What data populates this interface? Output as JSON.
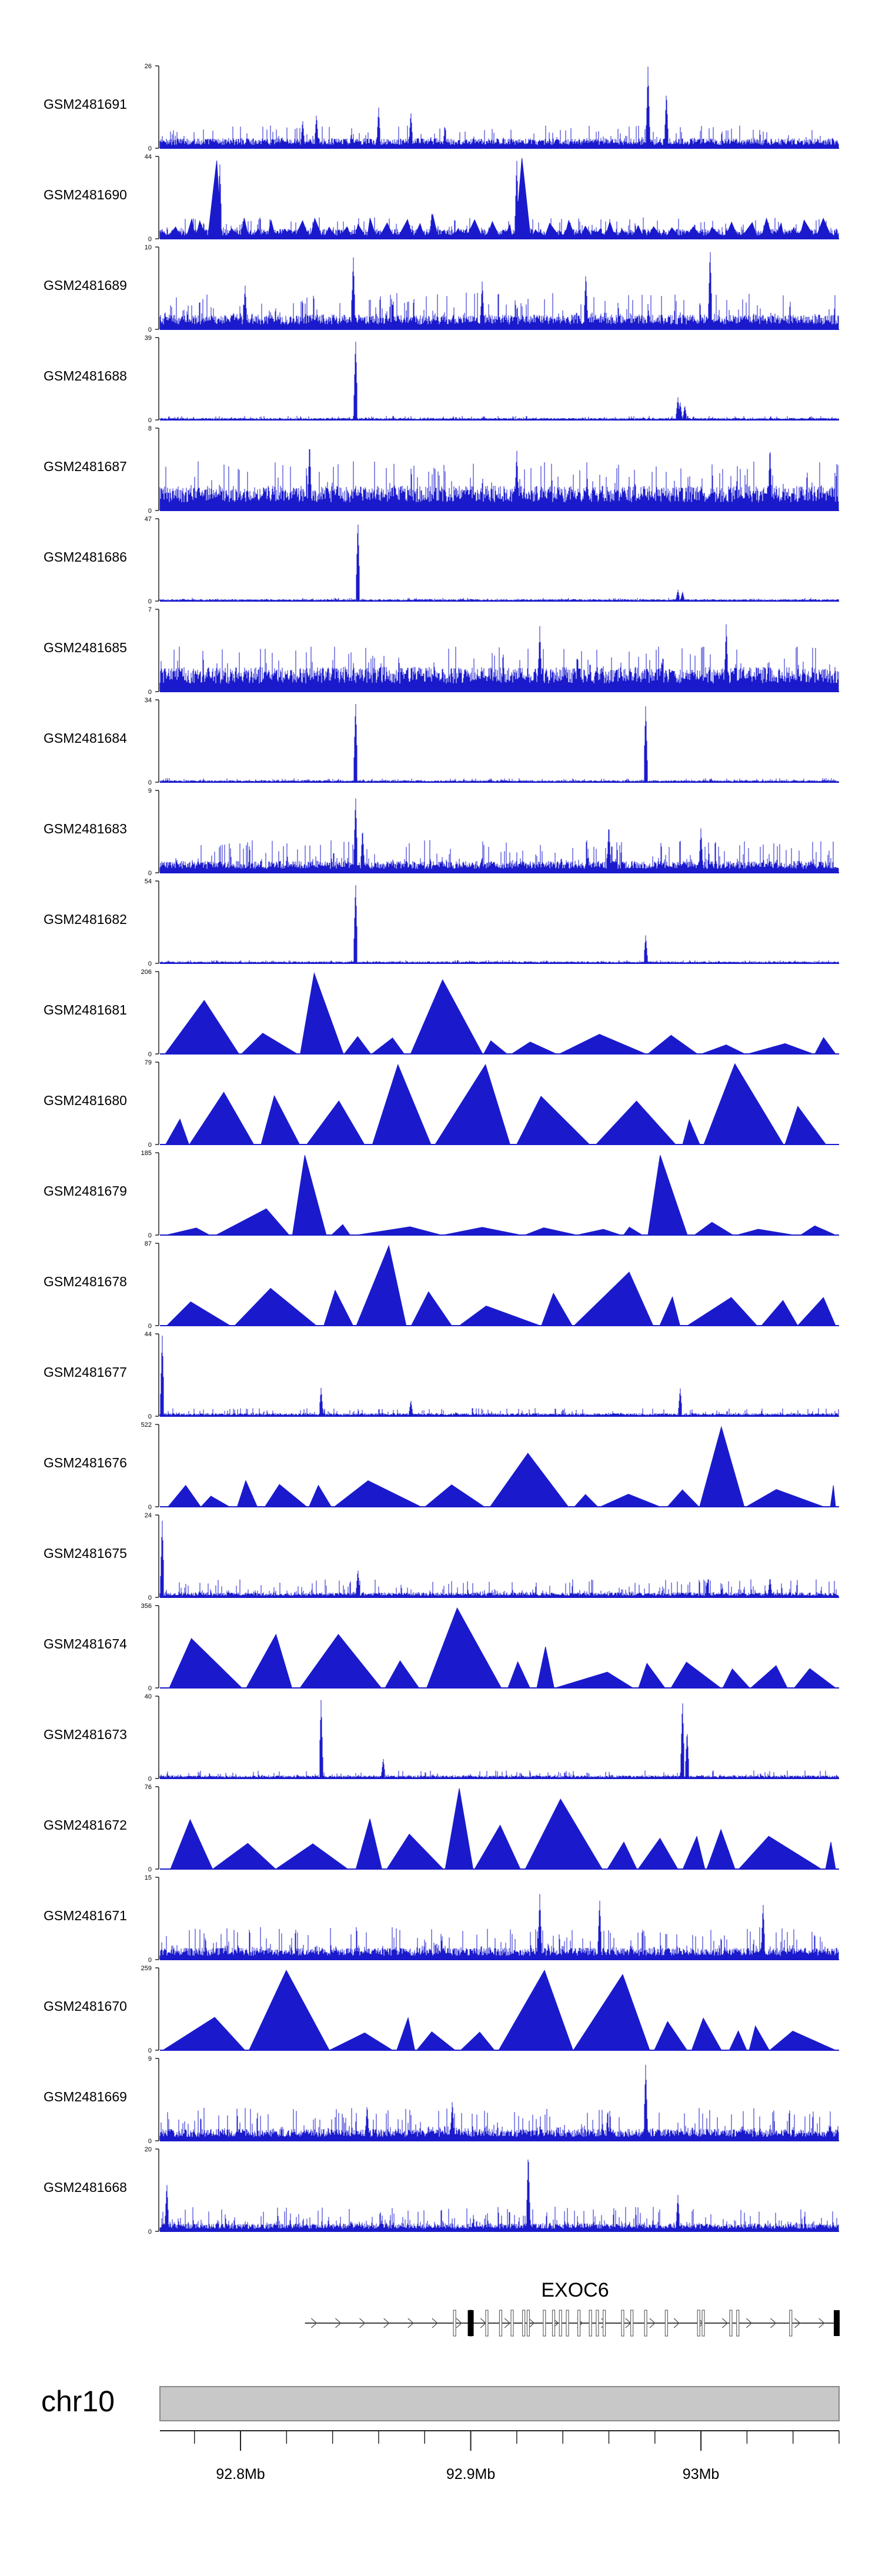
{
  "chart_data": {
    "type": "area",
    "colors": {
      "signal": "#1a1acc",
      "axis": "#222222",
      "ideogram": "#c8c8c8",
      "ideogram_border": "#888888",
      "gene": "#000000"
    },
    "region": {
      "chrom": "chr10",
      "start": 92765000,
      "end": 93060000
    },
    "tracks": [
      {
        "name": "GSM2481691",
        "ymax": 26,
        "ymin": 0,
        "style": "dense",
        "base": 0.1,
        "noise": 0.28,
        "peaks": [
          [
            92.827,
            0.35
          ],
          [
            92.833,
            0.42
          ],
          [
            92.86,
            0.5
          ],
          [
            92.874,
            0.45
          ],
          [
            92.977,
            1.0
          ],
          [
            92.985,
            0.7
          ]
        ]
      },
      {
        "name": "GSM2481690",
        "ymax": 44,
        "ymin": 0,
        "style": "hybrid",
        "base": 0.1,
        "noise": 0.26,
        "peaks": [
          [
            92.791,
            0.95
          ],
          [
            92.92,
            0.98
          ],
          [
            92.883,
            0.3
          ]
        ]
      },
      {
        "name": "GSM2481689",
        "ymax": 10,
        "ymin": 0,
        "style": "dense",
        "base": 0.15,
        "noise": 0.45,
        "peaks": [
          [
            92.802,
            0.55
          ],
          [
            92.849,
            0.9
          ],
          [
            93.004,
            1.0
          ],
          [
            92.905,
            0.6
          ],
          [
            92.95,
            0.7
          ]
        ]
      },
      {
        "name": "GSM2481688",
        "ymax": 39,
        "ymin": 0,
        "style": "dense",
        "base": 0.02,
        "noise": 0.05,
        "peaks": [
          [
            92.85,
            1.0
          ],
          [
            92.99,
            0.28
          ],
          [
            92.991,
            0.22
          ],
          [
            92.993,
            0.18
          ]
        ]
      },
      {
        "name": "GSM2481687",
        "ymax": 8,
        "ymin": 0,
        "style": "dense",
        "base": 0.25,
        "noise": 0.6,
        "peaks": [
          [
            92.83,
            0.85
          ],
          [
            92.92,
            0.75
          ],
          [
            93.03,
            0.8
          ]
        ]
      },
      {
        "name": "GSM2481686",
        "ymax": 47,
        "ymin": 0,
        "style": "dense",
        "base": 0.02,
        "noise": 0.04,
        "peaks": [
          [
            92.851,
            1.0
          ],
          [
            92.99,
            0.14
          ],
          [
            92.992,
            0.12
          ]
        ]
      },
      {
        "name": "GSM2481685",
        "ymax": 7,
        "ymin": 0,
        "style": "dense",
        "base": 0.25,
        "noise": 0.55,
        "peaks": [
          [
            92.93,
            0.8
          ],
          [
            93.011,
            0.85
          ]
        ]
      },
      {
        "name": "GSM2481684",
        "ymax": 34,
        "ymin": 0,
        "style": "dense",
        "base": 0.02,
        "noise": 0.05,
        "peaks": [
          [
            92.85,
            1.0
          ],
          [
            92.976,
            0.95
          ]
        ]
      },
      {
        "name": "GSM2481683",
        "ymax": 9,
        "ymin": 0,
        "style": "dense",
        "base": 0.12,
        "noise": 0.4,
        "peaks": [
          [
            92.85,
            0.95
          ],
          [
            92.853,
            0.55
          ],
          [
            92.96,
            0.6
          ],
          [
            93.0,
            0.55
          ]
        ]
      },
      {
        "name": "GSM2481682",
        "ymax": 54,
        "ymin": 0,
        "style": "dense",
        "base": 0.02,
        "noise": 0.04,
        "peaks": [
          [
            92.85,
            1.0
          ],
          [
            92.976,
            0.35
          ]
        ]
      },
      {
        "name": "GSM2481681",
        "ymax": 206,
        "ymin": 0,
        "style": "triangles",
        "base": 0,
        "noise": 0.2,
        "peaks": [
          [
            92.773,
            0.65
          ],
          [
            92.835,
            0.98
          ],
          [
            92.891,
            0.9
          ],
          [
            92.8825,
            0.45
          ],
          [
            92.766,
            0.28
          ]
        ]
      },
      {
        "name": "GSM2481680",
        "ymax": 79,
        "ymin": 0,
        "style": "triangles",
        "base": 0,
        "noise": 0.5,
        "peaks": [
          [
            92.868,
            0.97
          ],
          [
            92.908,
            0.97
          ],
          [
            93.004,
            0.98
          ],
          [
            92.886,
            0.8
          ]
        ]
      },
      {
        "name": "GSM2481679",
        "ymax": 185,
        "ymin": 0,
        "style": "triangles",
        "base": 0,
        "noise": 0.12,
        "peaks": [
          [
            92.835,
            0.97
          ],
          [
            92.977,
            0.97
          ],
          [
            92.789,
            0.32
          ]
        ]
      },
      {
        "name": "GSM2481678",
        "ymax": 87,
        "ymin": 0,
        "style": "triangles",
        "base": 0,
        "noise": 0.35,
        "peaks": [
          [
            92.869,
            0.97
          ],
          [
            92.963,
            0.65
          ],
          [
            92.803,
            0.4
          ]
        ]
      },
      {
        "name": "GSM2481677",
        "ymax": 44,
        "ymin": 0,
        "style": "dense",
        "base": 0.03,
        "noise": 0.1,
        "peaks": [
          [
            92.766,
            1.0
          ],
          [
            92.835,
            0.35
          ],
          [
            92.991,
            0.35
          ],
          [
            92.874,
            0.2
          ]
        ]
      },
      {
        "name": "GSM2481676",
        "ymax": 522,
        "ymin": 0,
        "style": "triangles",
        "base": 0,
        "noise": 0.25,
        "peaks": [
          [
            92.84,
            0.65
          ],
          [
            92.937,
            0.65
          ],
          [
            93.009,
            0.97
          ],
          [
            93.0065,
            0.25
          ]
        ]
      },
      {
        "name": "GSM2481675",
        "ymax": 24,
        "ymin": 0,
        "style": "dense",
        "base": 0.05,
        "noise": 0.22,
        "peaks": [
          [
            92.766,
            0.95
          ],
          [
            92.851,
            0.35
          ],
          [
            93.03,
            0.25
          ]
        ]
      },
      {
        "name": "GSM2481674",
        "ymax": 356,
        "ymin": 0,
        "style": "triangles",
        "base": 0,
        "noise": 0.3,
        "peaks": [
          [
            92.905,
            0.97
          ],
          [
            92.849,
            0.65
          ],
          [
            92.769,
            0.6
          ],
          [
            92.817,
            0.65
          ],
          [
            92.93,
            0.5
          ]
        ]
      },
      {
        "name": "GSM2481673",
        "ymax": 40,
        "ymin": 0,
        "style": "dense",
        "base": 0.03,
        "noise": 0.1,
        "peaks": [
          [
            92.835,
            0.97
          ],
          [
            92.992,
            0.97
          ],
          [
            92.994,
            0.6
          ],
          [
            92.862,
            0.25
          ]
        ]
      },
      {
        "name": "GSM2481672",
        "ymax": 76,
        "ymin": 0,
        "style": "triangles",
        "base": 0,
        "noise": 0.55,
        "peaks": [
          [
            92.78,
            0.6
          ],
          [
            92.9,
            0.98
          ],
          [
            92.957,
            0.85
          ]
        ]
      },
      {
        "name": "GSM2481671",
        "ymax": 15,
        "ymin": 0,
        "style": "dense",
        "base": 0.12,
        "noise": 0.4,
        "peaks": [
          [
            92.93,
            0.8
          ],
          [
            92.956,
            0.75
          ],
          [
            93.027,
            0.7
          ]
        ]
      },
      {
        "name": "GSM2481670",
        "ymax": 259,
        "ymin": 0,
        "style": "triangles",
        "base": 0,
        "noise": 0.35,
        "peaks": [
          [
            92.83,
            0.97
          ],
          [
            92.922,
            0.97
          ],
          [
            92.956,
            0.92
          ],
          [
            92.774,
            0.4
          ]
        ]
      },
      {
        "name": "GSM2481669",
        "ymax": 9,
        "ymin": 0,
        "style": "dense",
        "base": 0.12,
        "noise": 0.4,
        "peaks": [
          [
            92.976,
            0.95
          ],
          [
            92.855,
            0.45
          ],
          [
            92.892,
            0.5
          ]
        ]
      },
      {
        "name": "GSM2481668",
        "ymax": 20,
        "ymin": 0,
        "style": "dense",
        "base": 0.08,
        "noise": 0.3,
        "peaks": [
          [
            92.925,
            0.98
          ],
          [
            92.768,
            0.6
          ],
          [
            92.99,
            0.45
          ]
        ]
      }
    ],
    "gene": {
      "name": "EXOC6",
      "start": 92.828,
      "end": 93.06,
      "strand": "+",
      "thick_exons": [
        92.9,
        93.06
      ],
      "exons": [
        92.893,
        92.9,
        92.907,
        92.913,
        92.918,
        92.923,
        92.925,
        92.932,
        92.936,
        92.939,
        92.942,
        92.947,
        92.952,
        92.955,
        92.958,
        92.966,
        92.97,
        92.976,
        92.985,
        92.999,
        93.001,
        93.013,
        93.016,
        93.039
      ]
    },
    "chromosome": {
      "label": "chr10"
    },
    "x_axis": {
      "ticks": [
        92.8,
        92.9,
        93.0
      ],
      "tick_labels": [
        "92.8Mb",
        "92.9Mb",
        "93Mb"
      ],
      "minor_step": 0.02
    }
  }
}
